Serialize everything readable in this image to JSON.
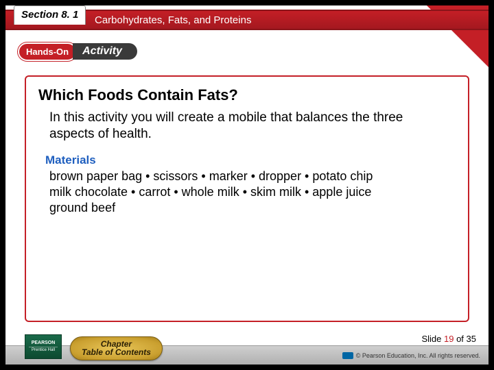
{
  "colors": {
    "brand_red": "#c41f26",
    "brand_red_dark": "#a4181f",
    "footer_gray_top": "#cfcfcf",
    "footer_gray_bottom": "#b0b0b0",
    "materials_blue": "#1f5fbf",
    "pearson_green": "#1a6a4a",
    "toc_gold": "#caa030",
    "background": "#ffffff",
    "page_bg": "#000000"
  },
  "typography": {
    "base_family": "Arial",
    "section_tab_fontsize": 15,
    "band_title_fontsize": 15,
    "content_title_fontsize": 22,
    "body_fontsize": 19,
    "materials_heading_fontsize": 17,
    "materials_list_fontsize": 18,
    "slidenum_fontsize": 13,
    "copyright_fontsize": 9
  },
  "header": {
    "section_label": "Section 8. 1",
    "chapter_title": "Carbohydrates, Fats, and Proteins"
  },
  "badge": {
    "hands_on": "Hands-On",
    "activity": "Activity"
  },
  "content": {
    "title": "Which Foods Contain Fats?",
    "intro": "In this activity you will create a mobile that balances the three aspects of health.",
    "materials_heading": "Materials",
    "materials_line1": "brown paper bag • scissors • marker • dropper • potato chip",
    "materials_line2": "milk chocolate • carrot • whole milk • skim milk • apple juice",
    "materials_line3": "ground beef"
  },
  "footer": {
    "logo_top": "PEARSON",
    "logo_bottom": "Prentice Hall",
    "toc_line1": "Chapter",
    "toc_line2": "Table of Contents",
    "slide_prefix": "Slide ",
    "slide_current": "19",
    "slide_of": " of 35",
    "copyright": "© Pearson Education, Inc. All rights reserved."
  }
}
